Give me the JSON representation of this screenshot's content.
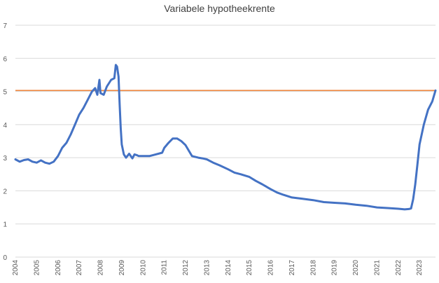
{
  "chart_data": {
    "type": "line",
    "title": "Variabele hypotheekrente",
    "xlabel": "",
    "ylabel": "",
    "xlim": [
      2004,
      2023.75
    ],
    "ylim": [
      0,
      7
    ],
    "y_ticks": [
      "0",
      "1",
      "2",
      "3",
      "4",
      "5",
      "6",
      "7"
    ],
    "x_ticks": [
      "2004",
      "2005",
      "2006",
      "2007",
      "2008",
      "2009",
      "2010",
      "2011",
      "2012",
      "2013",
      "2014",
      "2015",
      "2016",
      "2017",
      "2018",
      "2019",
      "2020",
      "2021",
      "2022",
      "2023"
    ],
    "grid": true,
    "colors": {
      "series": "#4472c4",
      "reference": "#ed7d31"
    },
    "reference_line": 5.03,
    "series": [
      {
        "x": [
          2004.0,
          2004.2,
          2004.4,
          2004.6,
          2004.8,
          2005.0,
          2005.2,
          2005.4,
          2005.6,
          2005.8,
          2006.0,
          2006.2,
          2006.4,
          2006.6,
          2006.8,
          2007.0,
          2007.2,
          2007.4,
          2007.6,
          2007.75,
          2007.85,
          2007.95,
          2008.0,
          2008.15,
          2008.3,
          2008.5,
          2008.65,
          2008.72,
          2008.78,
          2008.85,
          2008.9,
          2008.95,
          2009.0,
          2009.1,
          2009.2,
          2009.35,
          2009.5,
          2009.6,
          2009.7,
          2009.8,
          2010.0,
          2010.3,
          2010.6,
          2010.9,
          2011.0,
          2011.2,
          2011.4,
          2011.6,
          2011.8,
          2012.0,
          2012.3,
          2012.6,
          2012.8,
          2013.0,
          2013.3,
          2013.6,
          2014.0,
          2014.3,
          2014.6,
          2015.0,
          2015.3,
          2015.6,
          2016.0,
          2016.3,
          2016.6,
          2017.0,
          2017.5,
          2018.0,
          2018.5,
          2019.0,
          2019.5,
          2020.0,
          2020.5,
          2021.0,
          2021.5,
          2022.0,
          2022.3,
          2022.5,
          2022.6,
          2022.7,
          2022.8,
          2022.9,
          2023.0,
          2023.2,
          2023.4,
          2023.6,
          2023.75
        ],
        "y": [
          2.95,
          2.88,
          2.93,
          2.95,
          2.88,
          2.85,
          2.92,
          2.85,
          2.82,
          2.88,
          3.05,
          3.3,
          3.45,
          3.7,
          4.0,
          4.3,
          4.5,
          4.75,
          5.0,
          5.1,
          4.9,
          5.35,
          4.95,
          4.9,
          5.15,
          5.35,
          5.4,
          5.8,
          5.75,
          5.45,
          4.6,
          3.9,
          3.4,
          3.1,
          3.0,
          3.12,
          2.98,
          3.1,
          3.08,
          3.05,
          3.05,
          3.05,
          3.1,
          3.15,
          3.3,
          3.45,
          3.58,
          3.58,
          3.5,
          3.38,
          3.05,
          3.0,
          2.98,
          2.95,
          2.85,
          2.77,
          2.65,
          2.55,
          2.5,
          2.42,
          2.3,
          2.2,
          2.05,
          1.95,
          1.88,
          1.8,
          1.76,
          1.72,
          1.66,
          1.64,
          1.62,
          1.58,
          1.55,
          1.5,
          1.48,
          1.46,
          1.44,
          1.45,
          1.47,
          1.75,
          2.2,
          2.8,
          3.4,
          4.0,
          4.45,
          4.7,
          5.03
        ]
      }
    ]
  }
}
